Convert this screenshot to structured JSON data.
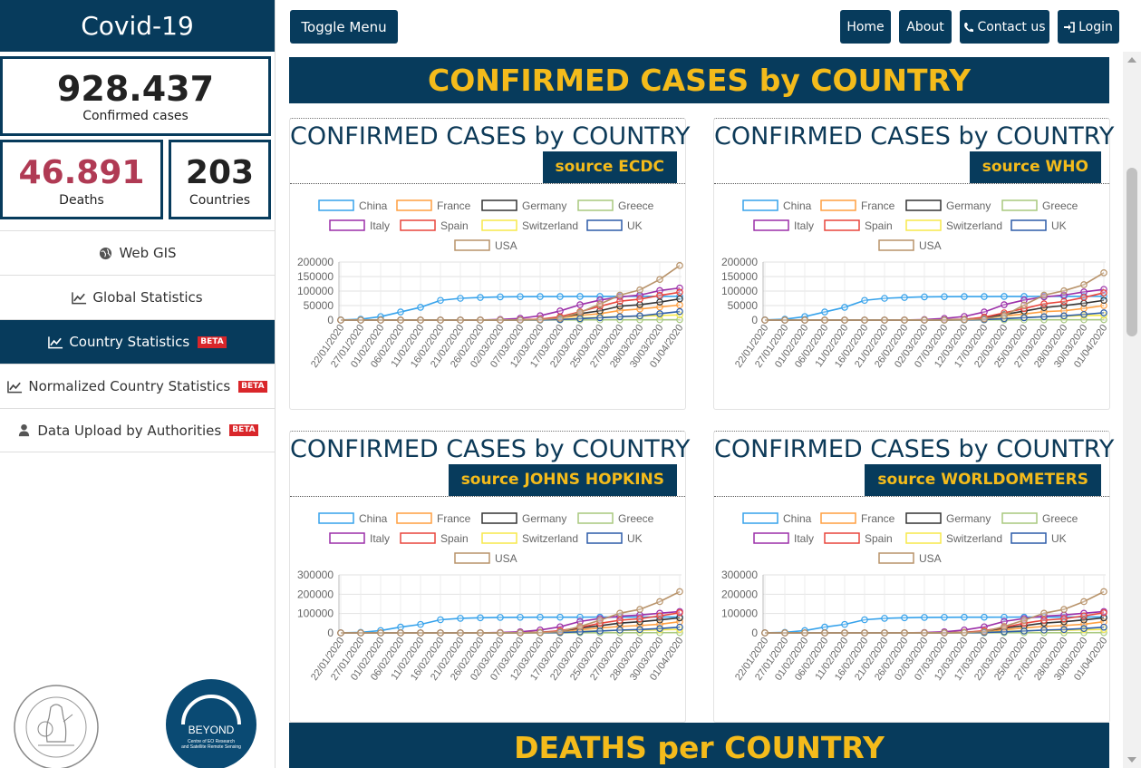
{
  "sidebar": {
    "brand": "Covid-19",
    "confirmed": {
      "value": "928.437",
      "label": "Confirmed cases"
    },
    "deaths": {
      "value": "46.891",
      "label": "Deaths"
    },
    "countries": {
      "value": "203",
      "label": "Countries"
    },
    "nav": [
      {
        "label": "Web GIS",
        "icon": "globe-icon",
        "beta": ""
      },
      {
        "label": "Global Statistics",
        "icon": "line-chart-icon",
        "beta": ""
      },
      {
        "label": "Country Statistics",
        "icon": "line-chart-icon",
        "beta": "BETA"
      },
      {
        "label": "Normalized Country Statistics",
        "icon": "line-chart-icon",
        "beta": "BETA"
      },
      {
        "label": "Data Upload by Authorities",
        "icon": "user-icon",
        "beta": "BETA"
      }
    ],
    "beyond_logo": {
      "name": "BEYOND",
      "line1": "Centre of EO Research",
      "line2": "and Satellite Remote Sensing"
    }
  },
  "topbar": {
    "toggle": "Toggle Menu",
    "home": "Home",
    "about": "About",
    "contact": "Contact us",
    "login": "Login"
  },
  "main": {
    "banner_confirmed": "CONFIRMED CASES by COUNTRY",
    "banner_deaths": "DEATHS per COUNTRY"
  },
  "colors": {
    "navy": "#073b5c",
    "gold": "#f4bb1b",
    "deaths_red": "#b03a54",
    "beta_red": "#d9262a"
  },
  "chart_data": [
    {
      "type": "line",
      "title": "CONFIRMED CASES by COUNTRY",
      "source": "source ECDC",
      "x": [
        "22/01/2020",
        "27/01/2020",
        "01/02/2020",
        "06/02/2020",
        "11/02/2020",
        "16/02/2020",
        "21/02/2020",
        "26/02/2020",
        "02/03/2020",
        "07/03/2020",
        "12/03/2020",
        "17/03/2020",
        "22/03/2020",
        "25/03/2020",
        "27/03/2020",
        "28/03/2020",
        "30/03/2020",
        "01/04/2020"
      ],
      "ylim": [
        0,
        200000
      ],
      "yticks": [
        0,
        50000,
        100000,
        150000,
        200000
      ],
      "legend_position": "top",
      "grid": true,
      "series": [
        {
          "name": "China",
          "color": "#36a2eb",
          "values": [
            500,
            2800,
            12000,
            28000,
            44000,
            68000,
            75000,
            78000,
            80000,
            80800,
            81000,
            81100,
            81400,
            81500,
            81700,
            81800,
            81900,
            82000
          ]
        },
        {
          "name": "France",
          "color": "#ff9f40",
          "values": [
            0,
            0,
            0,
            0,
            0,
            0,
            10,
            20,
            200,
            900,
            2900,
            7700,
            16000,
            22000,
            33000,
            38000,
            45000,
            52000
          ]
        },
        {
          "name": "Germany",
          "color": "#333333",
          "values": [
            0,
            0,
            0,
            0,
            0,
            0,
            20,
            30,
            160,
            800,
            2700,
            9300,
            22000,
            32000,
            48000,
            53000,
            62000,
            73000
          ]
        },
        {
          "name": "Greece",
          "color": "#a8c97f",
          "values": [
            0,
            0,
            0,
            0,
            0,
            0,
            0,
            2,
            7,
            40,
            190,
            390,
            620,
            820,
            960,
            1060,
            1200,
            1320
          ]
        },
        {
          "name": "Italy",
          "color": "#9b2ea8",
          "values": [
            0,
            0,
            0,
            3,
            3,
            3,
            20,
            400,
            2000,
            5900,
            15000,
            31500,
            53000,
            69000,
            80000,
            86000,
            101700,
            110500
          ]
        },
        {
          "name": "Spain",
          "color": "#e8453c",
          "values": [
            0,
            0,
            0,
            1,
            2,
            2,
            2,
            12,
            120,
            500,
            3000,
            11700,
            28600,
            47600,
            65000,
            72000,
            85000,
            95900
          ]
        },
        {
          "name": "Switzerland",
          "color": "#f7e94a",
          "values": [
            0,
            0,
            0,
            0,
            0,
            0,
            0,
            10,
            40,
            260,
            860,
            2650,
            7200,
            9800,
            12100,
            13200,
            15900,
            17700
          ]
        },
        {
          "name": "UK",
          "color": "#2d5ca8",
          "values": [
            0,
            0,
            2,
            3,
            8,
            9,
            9,
            15,
            40,
            210,
            590,
            1950,
            5000,
            8100,
            11600,
            14500,
            22100,
            29500
          ]
        },
        {
          "name": "USA",
          "color": "#b8936a",
          "values": [
            1,
            5,
            8,
            12,
            13,
            15,
            35,
            60,
            100,
            400,
            1600,
            6500,
            26700,
            55000,
            86000,
            104000,
            140000,
            188000
          ]
        }
      ]
    },
    {
      "type": "line",
      "title": "CONFIRMED CASES by COUNTRY",
      "source": "source WHO",
      "x": [
        "22/01/2020",
        "27/01/2020",
        "01/02/2020",
        "06/02/2020",
        "11/02/2020",
        "16/02/2020",
        "21/02/2020",
        "26/02/2020",
        "02/03/2020",
        "07/03/2020",
        "12/03/2020",
        "17/03/2020",
        "22/03/2020",
        "25/03/2020",
        "27/03/2020",
        "28/03/2020",
        "30/03/2020",
        "01/04/2020"
      ],
      "ylim": [
        0,
        200000
      ],
      "yticks": [
        0,
        50000,
        100000,
        150000,
        200000
      ],
      "legend_position": "top",
      "grid": true,
      "series": [
        {
          "name": "China",
          "color": "#36a2eb",
          "values": [
            500,
            2800,
            12000,
            28000,
            44000,
            68000,
            75000,
            78000,
            80000,
            80800,
            81000,
            81100,
            81400,
            81500,
            81700,
            81800,
            81900,
            82000
          ]
        },
        {
          "name": "France",
          "color": "#ff9f40",
          "values": [
            0,
            0,
            0,
            0,
            0,
            0,
            10,
            20,
            150,
            700,
            2300,
            6600,
            14300,
            21000,
            29000,
            32000,
            40000,
            50000
          ]
        },
        {
          "name": "Germany",
          "color": "#333333",
          "values": [
            0,
            0,
            0,
            0,
            0,
            0,
            20,
            30,
            130,
            700,
            2400,
            8000,
            19000,
            31000,
            43000,
            50000,
            58000,
            68000
          ]
        },
        {
          "name": "Greece",
          "color": "#a8c97f",
          "values": [
            0,
            0,
            0,
            0,
            0,
            0,
            0,
            2,
            7,
            40,
            190,
            390,
            620,
            820,
            960,
            1060,
            1200,
            1320
          ]
        },
        {
          "name": "Italy",
          "color": "#9b2ea8",
          "values": [
            0,
            0,
            0,
            3,
            3,
            3,
            20,
            400,
            1700,
            5800,
            12500,
            27900,
            53000,
            69000,
            80000,
            86000,
            97000,
            105800
          ]
        },
        {
          "name": "Spain",
          "color": "#e8453c",
          "values": [
            0,
            0,
            0,
            1,
            2,
            2,
            2,
            12,
            100,
            400,
            2100,
            9900,
            25000,
            39700,
            56000,
            64000,
            78000,
            94000
          ]
        },
        {
          "name": "Switzerland",
          "color": "#f7e94a",
          "values": [
            0,
            0,
            0,
            0,
            0,
            0,
            0,
            10,
            30,
            210,
            860,
            2650,
            6100,
            9200,
            11800,
            12900,
            15400,
            16600
          ]
        },
        {
          "name": "UK",
          "color": "#2d5ca8",
          "values": [
            0,
            0,
            2,
            3,
            8,
            9,
            9,
            15,
            40,
            160,
            460,
            1550,
            5000,
            8100,
            11600,
            14500,
            19500,
            25100
          ]
        },
        {
          "name": "USA",
          "color": "#b8936a",
          "values": [
            1,
            5,
            8,
            12,
            13,
            15,
            35,
            60,
            60,
            200,
            1300,
            4200,
            15200,
            51900,
            86000,
            101000,
            122000,
            163000
          ]
        }
      ]
    },
    {
      "type": "line",
      "title": "CONFIRMED CASES by COUNTRY",
      "source": "source JOHNS HOPKINS",
      "x": [
        "22/01/2020",
        "27/01/2020",
        "01/02/2020",
        "06/02/2020",
        "11/02/2020",
        "16/02/2020",
        "21/02/2020",
        "26/02/2020",
        "02/03/2020",
        "07/03/2020",
        "12/03/2020",
        "17/03/2020",
        "22/03/2020",
        "25/03/2020",
        "27/03/2020",
        "28/03/2020",
        "30/03/2020",
        "01/04/2020"
      ],
      "ylim": [
        0,
        300000
      ],
      "yticks": [
        0,
        100000,
        200000,
        300000
      ],
      "legend_position": "top",
      "grid": true,
      "series": [
        {
          "name": "China",
          "color": "#36a2eb",
          "values": [
            550,
            2900,
            12000,
            30000,
            44000,
            68000,
            75500,
            78200,
            80100,
            80800,
            81000,
            81100,
            81400,
            81600,
            81800,
            81900,
            82100,
            82300
          ]
        },
        {
          "name": "France",
          "color": "#ff9f40",
          "values": [
            0,
            3,
            6,
            6,
            11,
            12,
            12,
            18,
            190,
            950,
            2900,
            7700,
            16200,
            25600,
            33400,
            38100,
            45000,
            57700
          ]
        },
        {
          "name": "Germany",
          "color": "#333333",
          "values": [
            0,
            1,
            8,
            12,
            16,
            16,
            16,
            27,
            130,
            800,
            2700,
            9300,
            24900,
            37300,
            50800,
            57700,
            66900,
            77900
          ]
        },
        {
          "name": "Greece",
          "color": "#a8c97f",
          "values": [
            0,
            0,
            0,
            0,
            0,
            0,
            0,
            3,
            7,
            45,
            190,
            390,
            620,
            820,
            960,
            1060,
            1200,
            1420
          ]
        },
        {
          "name": "Italy",
          "color": "#9b2ea8",
          "values": [
            0,
            0,
            2,
            3,
            3,
            3,
            20,
            450,
            2000,
            5900,
            15100,
            31500,
            59100,
            74400,
            86500,
            92500,
            101700,
            110600
          ]
        },
        {
          "name": "Spain",
          "color": "#e8453c",
          "values": [
            0,
            0,
            1,
            1,
            2,
            2,
            2,
            13,
            120,
            500,
            2900,
            11700,
            28600,
            49500,
            65700,
            73200,
            87900,
            104100
          ]
        },
        {
          "name": "Switzerland",
          "color": "#f7e94a",
          "values": [
            0,
            0,
            0,
            0,
            0,
            0,
            0,
            8,
            42,
            270,
            860,
            2700,
            7200,
            10900,
            12900,
            14000,
            15900,
            17800
          ]
        },
        {
          "name": "UK",
          "color": "#2d5ca8",
          "values": [
            0,
            0,
            2,
            3,
            8,
            9,
            9,
            13,
            40,
            210,
            590,
            1950,
            5700,
            9600,
            14700,
            17300,
            22500,
            29800
          ]
        },
        {
          "name": "USA",
          "color": "#b8936a",
          "values": [
            1,
            5,
            8,
            12,
            13,
            15,
            35,
            60,
            100,
            400,
            1600,
            6400,
            33300,
            65800,
            101700,
            121500,
            161800,
            213400
          ]
        }
      ]
    },
    {
      "type": "line",
      "title": "CONFIRMED CASES by COUNTRY",
      "source": "source WORLDOMETERS",
      "x": [
        "22/01/2020",
        "27/01/2020",
        "01/02/2020",
        "06/02/2020",
        "11/02/2020",
        "16/02/2020",
        "21/02/2020",
        "26/02/2020",
        "02/03/2020",
        "07/03/2020",
        "12/03/2020",
        "17/03/2020",
        "22/03/2020",
        "25/03/2020",
        "27/03/2020",
        "28/03/2020",
        "30/03/2020",
        "01/04/2020"
      ],
      "ylim": [
        0,
        300000
      ],
      "yticks": [
        0,
        100000,
        200000,
        300000
      ],
      "legend_position": "top",
      "grid": true,
      "series": [
        {
          "name": "China",
          "color": "#36a2eb",
          "values": [
            550,
            2900,
            12000,
            30000,
            44000,
            68000,
            75500,
            78200,
            80100,
            80800,
            81000,
            81100,
            81400,
            81600,
            81800,
            81900,
            82100,
            82300
          ]
        },
        {
          "name": "France",
          "color": "#ff9f40",
          "values": [
            0,
            3,
            6,
            6,
            11,
            12,
            12,
            18,
            190,
            950,
            2900,
            7700,
            16200,
            25600,
            33400,
            38100,
            45000,
            57700
          ]
        },
        {
          "name": "Germany",
          "color": "#333333",
          "values": [
            0,
            1,
            8,
            12,
            16,
            16,
            16,
            27,
            130,
            800,
            2700,
            9300,
            24900,
            37300,
            50800,
            57700,
            66900,
            77900
          ]
        },
        {
          "name": "Greece",
          "color": "#a8c97f",
          "values": [
            0,
            0,
            0,
            0,
            0,
            0,
            0,
            3,
            7,
            45,
            190,
            390,
            620,
            820,
            960,
            1060,
            1200,
            1420
          ]
        },
        {
          "name": "Italy",
          "color": "#9b2ea8",
          "values": [
            0,
            0,
            2,
            3,
            3,
            3,
            20,
            450,
            2000,
            5900,
            15100,
            31500,
            59100,
            74400,
            86500,
            92500,
            101700,
            110600
          ]
        },
        {
          "name": "Spain",
          "color": "#e8453c",
          "values": [
            0,
            0,
            1,
            1,
            2,
            2,
            2,
            13,
            120,
            500,
            2900,
            11700,
            28600,
            49500,
            65700,
            73200,
            87900,
            104100
          ]
        },
        {
          "name": "Switzerland",
          "color": "#f7e94a",
          "values": [
            0,
            0,
            0,
            0,
            0,
            0,
            0,
            8,
            42,
            270,
            860,
            2700,
            7200,
            10900,
            12900,
            14000,
            15900,
            17800
          ]
        },
        {
          "name": "UK",
          "color": "#2d5ca8",
          "values": [
            0,
            0,
            2,
            3,
            8,
            9,
            9,
            13,
            40,
            210,
            590,
            1950,
            5700,
            9600,
            14700,
            17300,
            22500,
            29800
          ]
        },
        {
          "name": "USA",
          "color": "#b8936a",
          "values": [
            1,
            5,
            8,
            12,
            13,
            15,
            35,
            60,
            100,
            400,
            1600,
            6400,
            33300,
            65800,
            101700,
            121500,
            161800,
            213400
          ]
        }
      ]
    }
  ]
}
